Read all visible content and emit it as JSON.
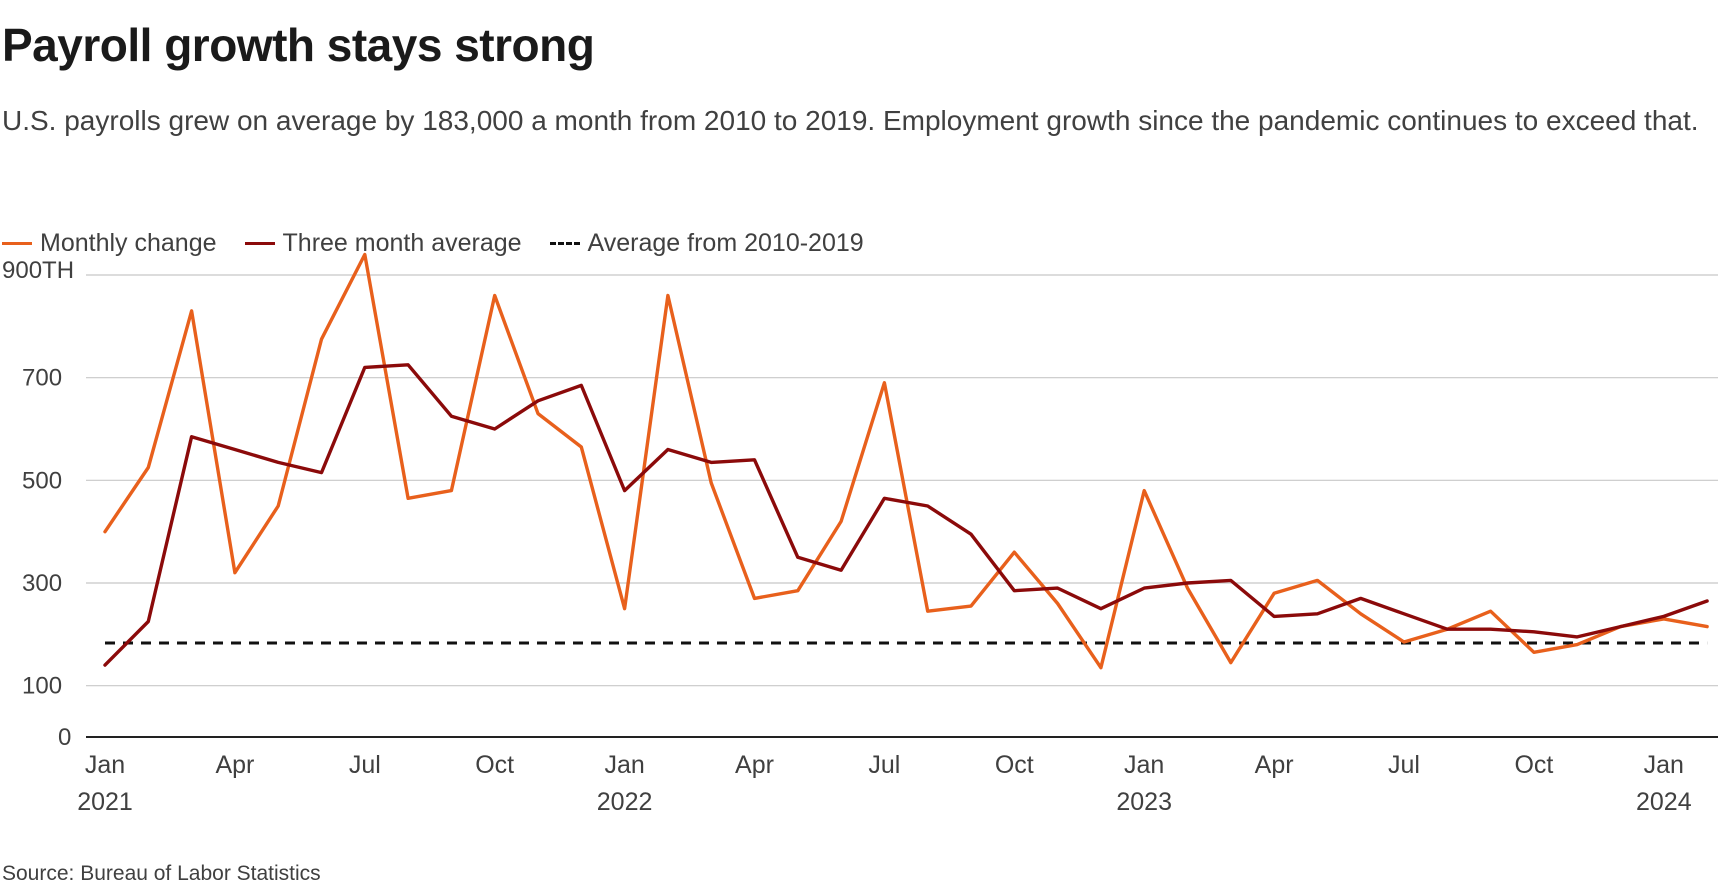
{
  "header": {
    "title": "Payroll growth stays strong",
    "subtitle": "U.S. payrolls grew on average by 183,000 a month from 2010 to 2019. Employment growth since the pandemic continues to exceed that."
  },
  "footer": {
    "source": "Source: Bureau of Labor Statistics"
  },
  "colors": {
    "monthly": "#e8601c",
    "three_month": "#8b0a0a",
    "baseline": "#111111",
    "grid": "#c8c8c8",
    "axis": "#222222"
  },
  "chart_data": {
    "type": "line",
    "title": "Payroll growth stays strong",
    "ylabel": "",
    "xlabel": "",
    "ylim": [
      0,
      950
    ],
    "xrange": [
      "2021-01",
      "2024-02"
    ],
    "grid": true,
    "legend_position": "top-left",
    "x": [
      "2021-01",
      "2021-02",
      "2021-03",
      "2021-04",
      "2021-05",
      "2021-06",
      "2021-07",
      "2021-08",
      "2021-09",
      "2021-10",
      "2021-11",
      "2021-12",
      "2022-01",
      "2022-02",
      "2022-03",
      "2022-04",
      "2022-05",
      "2022-06",
      "2022-07",
      "2022-08",
      "2022-09",
      "2022-10",
      "2022-11",
      "2022-12",
      "2023-01",
      "2023-02",
      "2023-03",
      "2023-04",
      "2023-05",
      "2023-06",
      "2023-07",
      "2023-08",
      "2023-09",
      "2023-10",
      "2023-11",
      "2023-12",
      "2024-01",
      "2024-02"
    ],
    "series": [
      {
        "name": "Monthly change",
        "color": "#e8601c",
        "style": "solid",
        "values": [
          400,
          525,
          830,
          320,
          450,
          775,
          940,
          465,
          480,
          860,
          630,
          565,
          250,
          860,
          495,
          270,
          285,
          420,
          690,
          245,
          255,
          360,
          260,
          135,
          480,
          290,
          145,
          280,
          305,
          240,
          185,
          210,
          245,
          165,
          180,
          215,
          230,
          215
        ]
      },
      {
        "name": "Three month average",
        "color": "#8b0a0a",
        "style": "solid",
        "values": [
          140,
          225,
          585,
          560,
          535,
          515,
          720,
          725,
          625,
          600,
          655,
          685,
          480,
          560,
          535,
          540,
          350,
          325,
          465,
          450,
          395,
          285,
          290,
          250,
          290,
          300,
          305,
          235,
          240,
          270,
          240,
          210,
          210,
          205,
          195,
          215,
          235,
          265
        ]
      },
      {
        "name": "Average from 2010-2019",
        "color": "#111111",
        "style": "dashed",
        "constant": 183
      }
    ],
    "y_ticks": [
      {
        "value": 900,
        "label": "900TH"
      },
      {
        "value": 700,
        "label": "700"
      },
      {
        "value": 500,
        "label": "500"
      },
      {
        "value": 300,
        "label": "300"
      },
      {
        "value": 100,
        "label": "100"
      },
      {
        "value": 0,
        "label": "0"
      }
    ],
    "x_ticks": [
      {
        "date": "2021-01",
        "label": "Jan",
        "year": "2021"
      },
      {
        "date": "2021-04",
        "label": "Apr",
        "year": ""
      },
      {
        "date": "2021-07",
        "label": "Jul",
        "year": ""
      },
      {
        "date": "2021-10",
        "label": "Oct",
        "year": ""
      },
      {
        "date": "2022-01",
        "label": "Jan",
        "year": "2022"
      },
      {
        "date": "2022-04",
        "label": "Apr",
        "year": ""
      },
      {
        "date": "2022-07",
        "label": "Jul",
        "year": ""
      },
      {
        "date": "2022-10",
        "label": "Oct",
        "year": ""
      },
      {
        "date": "2023-01",
        "label": "Jan",
        "year": "2023"
      },
      {
        "date": "2023-04",
        "label": "Apr",
        "year": ""
      },
      {
        "date": "2023-07",
        "label": "Jul",
        "year": ""
      },
      {
        "date": "2023-10",
        "label": "Oct",
        "year": ""
      },
      {
        "date": "2024-01",
        "label": "Jan",
        "year": "2024"
      }
    ]
  }
}
